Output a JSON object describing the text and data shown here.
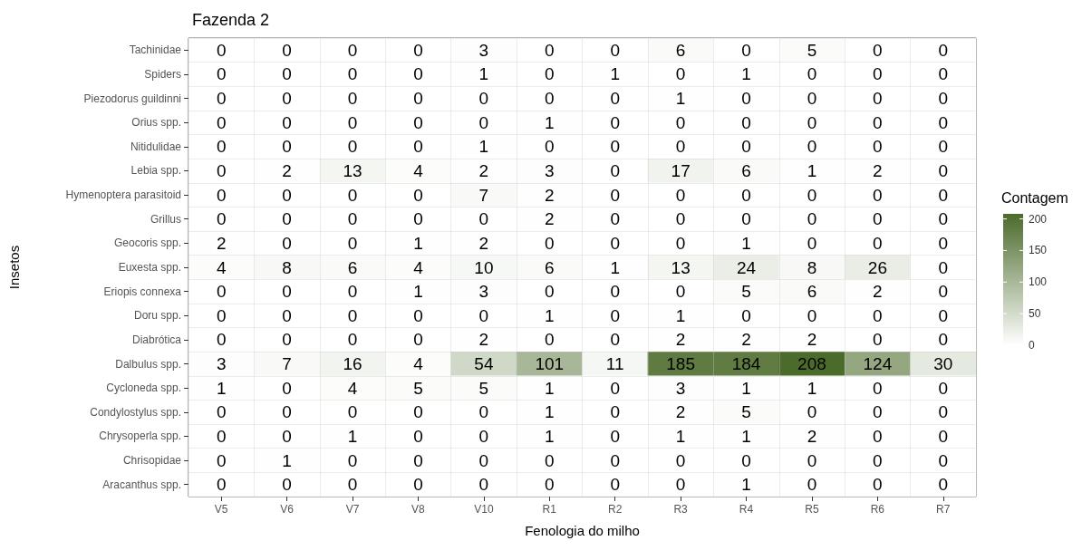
{
  "chart_data": {
    "type": "heatmap",
    "title": "Fazenda 2",
    "xlabel": "Fenologia do milho",
    "ylabel": "Insetos",
    "clabel": "Contagem",
    "categories": [
      "V5",
      "V6",
      "V7",
      "V8",
      "V10",
      "R1",
      "R2",
      "R3",
      "R4",
      "R5",
      "R6",
      "R7"
    ],
    "y_categories": [
      "Tachinidae",
      "Spiders",
      "Piezodorus guildinni",
      "Orius spp.",
      "Nitidulidae",
      "Lebia spp.",
      "Hymenoptera parasitoid",
      "Grillus",
      "Geocoris spp.",
      "Euxesta spp.",
      "Eriopis connexa",
      "Doru spp.",
      "Diabrótica",
      "Dalbulus spp.",
      "Cycloneda spp.",
      "Condylostylus spp.",
      "Chrysoperla spp.",
      "Chrisopidae",
      "Aracanthus spp."
    ],
    "cells": [
      [
        0,
        0,
        0,
        0,
        3,
        0,
        0,
        6,
        0,
        5,
        0,
        0
      ],
      [
        0,
        0,
        0,
        0,
        1,
        0,
        1,
        0,
        1,
        0,
        0,
        0
      ],
      [
        0,
        0,
        0,
        0,
        0,
        0,
        0,
        1,
        0,
        0,
        0,
        0
      ],
      [
        0,
        0,
        0,
        0,
        0,
        1,
        0,
        0,
        0,
        0,
        0,
        0
      ],
      [
        0,
        0,
        0,
        0,
        1,
        0,
        0,
        0,
        0,
        0,
        0,
        0
      ],
      [
        0,
        2,
        13,
        4,
        2,
        3,
        0,
        17,
        6,
        1,
        2,
        0
      ],
      [
        0,
        0,
        0,
        0,
        7,
        2,
        0,
        0,
        0,
        0,
        0,
        0
      ],
      [
        0,
        0,
        0,
        0,
        0,
        2,
        0,
        0,
        0,
        0,
        0,
        0
      ],
      [
        2,
        0,
        0,
        1,
        2,
        0,
        0,
        0,
        1,
        0,
        0,
        0
      ],
      [
        4,
        8,
        6,
        4,
        10,
        6,
        1,
        13,
        24,
        8,
        26,
        0
      ],
      [
        0,
        0,
        0,
        1,
        3,
        0,
        0,
        0,
        5,
        6,
        2,
        0
      ],
      [
        0,
        0,
        0,
        0,
        0,
        1,
        0,
        1,
        0,
        0,
        0,
        0
      ],
      [
        0,
        0,
        0,
        0,
        2,
        0,
        0,
        2,
        2,
        2,
        0,
        0
      ],
      [
        3,
        7,
        16,
        4,
        54,
        101,
        11,
        185,
        184,
        208,
        124,
        30
      ],
      [
        1,
        0,
        4,
        5,
        5,
        1,
        0,
        3,
        1,
        1,
        0,
        0
      ],
      [
        0,
        0,
        0,
        0,
        0,
        1,
        0,
        2,
        5,
        0,
        0,
        0
      ],
      [
        0,
        0,
        1,
        0,
        0,
        1,
        0,
        1,
        1,
        2,
        0,
        0
      ],
      [
        0,
        1,
        0,
        0,
        0,
        0,
        0,
        0,
        0,
        0,
        0,
        0
      ],
      [
        0,
        0,
        0,
        0,
        0,
        0,
        0,
        0,
        1,
        0,
        0,
        0
      ]
    ],
    "clim": [
      0,
      208
    ],
    "cticks": [
      0,
      50,
      100,
      150,
      200
    ],
    "color": "#4b6b2b",
    "data_labels": true,
    "grid": true
  }
}
